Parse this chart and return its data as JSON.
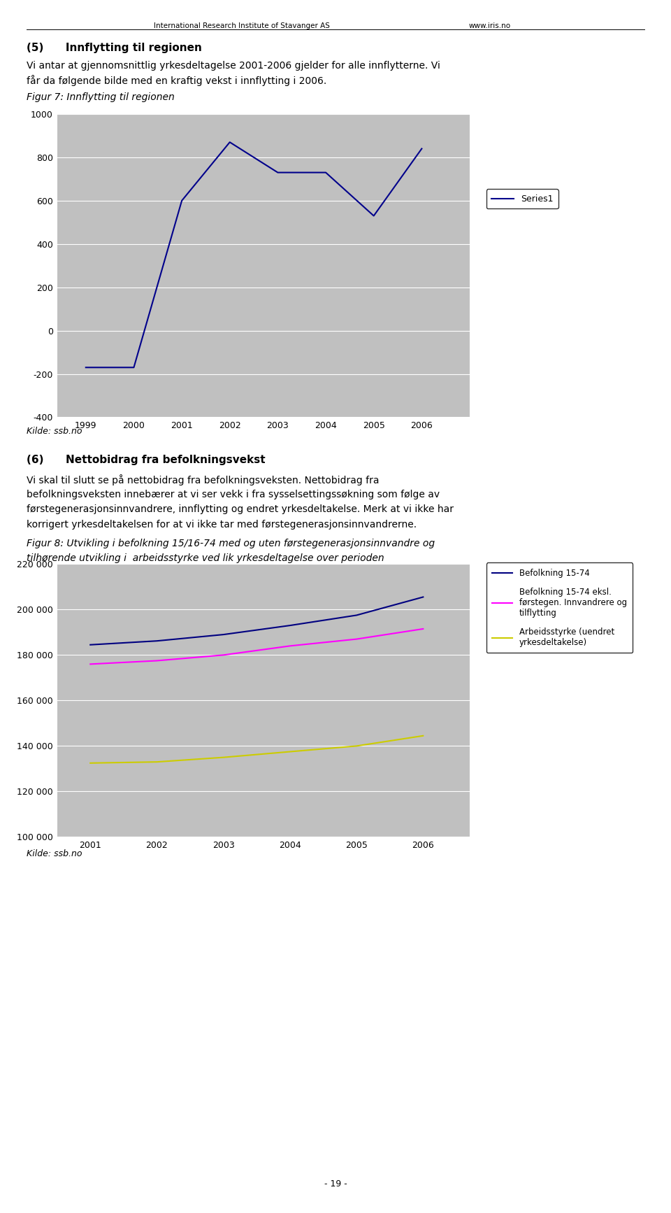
{
  "header_left": "International Research Institute of Stavanger AS",
  "header_right": "www.iris.no",
  "section5_title": "(5)      Innflytting til regionen",
  "section5_text1": "Vi antar at gjennomsnittlig yrkesdeltagelse 2001-2006 gjelder for alle innflytterne. Vi",
  "section5_text2": "får da følgende bilde med en kraftig vekst i innflytting i 2006.",
  "fig7_caption": "Figur 7: Innflytting til regionen",
  "fig7_years": [
    1999,
    2000,
    2001,
    2002,
    2003,
    2004,
    2005,
    2006
  ],
  "fig7_values": [
    -170,
    -170,
    600,
    870,
    730,
    730,
    530,
    840
  ],
  "fig7_ylim": [
    -400,
    1000
  ],
  "fig7_yticks": [
    -400,
    -200,
    0,
    200,
    400,
    600,
    800,
    1000
  ],
  "fig7_legend": "Series1",
  "fig7_line_color": "#00008B",
  "fig7_bg_color": "#C0C0C0",
  "kilde1": "Kilde: ssb.no",
  "section6_title": "(6)      Nettobidrag fra befolkningsvekst",
  "section6_line1": "Vi skal til slutt se på nettobidrag fra befolkningsveksten. Nettobidrag fra",
  "section6_line2": "befolkningsveksten innebærer at vi ser vekk i fra sysselsettingssøkning som følge av",
  "section6_line3": "førstegenerasjonsinnvandrere, innflytting og endret yrkesdeltakelse. Merk at vi ikke har",
  "section6_line4": "korrigert yrkesdeltakelsen for at vi ikke tar med førstegenerasjonsinnvandrerne.",
  "fig8_caption_line1": "Figur 8: Utvikling i befolkning 15/16-74 med og uten førstegenerasjonsinnvandre og",
  "fig8_caption_line2": "tilhørende utvikling i  arbeidsstyrke ved lik yrkesdeltagelse over perioden",
  "fig8_years": [
    2001,
    2002,
    2003,
    2004,
    2005,
    2006
  ],
  "fig8_series1": [
    184500,
    186200,
    189000,
    193000,
    197500,
    205500
  ],
  "fig8_series2": [
    176000,
    177500,
    180000,
    184000,
    187000,
    191500
  ],
  "fig8_series3": [
    132500,
    133000,
    135000,
    137500,
    140000,
    144500
  ],
  "fig8_ylim": [
    100000,
    220000
  ],
  "fig8_yticks": [
    100000,
    120000,
    140000,
    160000,
    180000,
    200000,
    220000
  ],
  "fig8_legend1": "Befolkning 15-74",
  "fig8_legend2": "Befolkning 15-74 eksl.\nførstegen. Innvandrere og\ntilflytting",
  "fig8_legend3": "Arbeidsstyrke (uendret\nyrkesdeltakelse)",
  "fig8_color1": "#000080",
  "fig8_color2": "#FF00FF",
  "fig8_color3": "#CCCC00",
  "fig8_bg_color": "#C0C0C0",
  "kilde2": "Kilde: ssb.no",
  "page_number": "- 19 -"
}
